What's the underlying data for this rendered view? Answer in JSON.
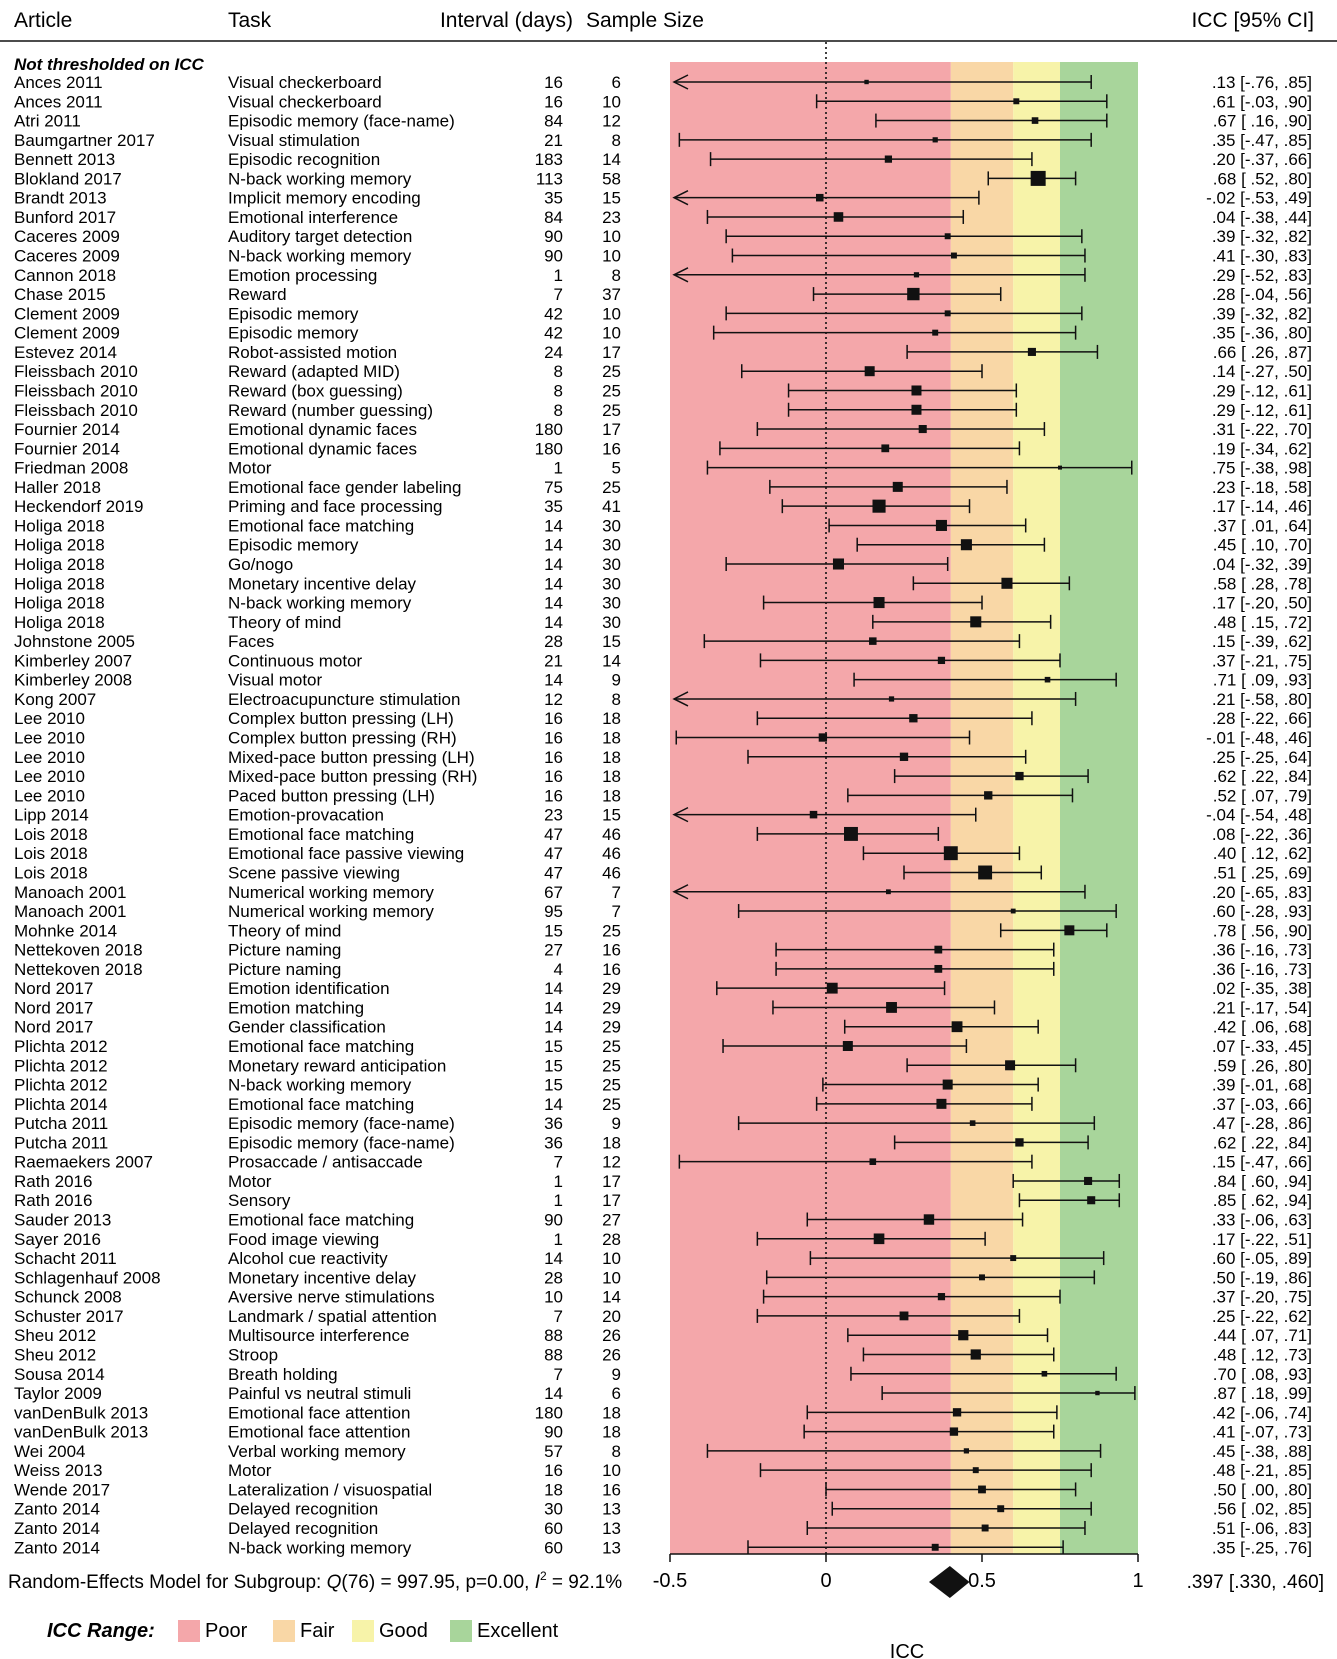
{
  "chart_data": {
    "type": "forest",
    "columns": [
      "Article",
      "Task",
      "Interval (days)",
      "Sample Size",
      "ICC [95% CI]"
    ],
    "subgroup_label": "Not thresholded on ICC",
    "xlabel": "ICC",
    "xlim": [
      -0.5,
      1.0
    ],
    "xticks": [
      {
        "value": -0.5,
        "label": "-0.5"
      },
      {
        "value": 0,
        "label": "0"
      },
      {
        "value": 0.5,
        "label": "0.5"
      },
      {
        "value": 1,
        "label": "1"
      }
    ],
    "reference_line": 0,
    "ranges": [
      {
        "label": "Poor",
        "from": -0.5,
        "to": 0.4,
        "color": "#f4a7aa"
      },
      {
        "label": "Fair",
        "from": 0.4,
        "to": 0.6,
        "color": "#f9d7a6"
      },
      {
        "label": "Good",
        "from": 0.6,
        "to": 0.75,
        "color": "#f7f3a9"
      },
      {
        "label": "Excellent",
        "from": 0.75,
        "to": 1.0,
        "color": "#a8d59b"
      }
    ],
    "legend_title": "ICC Range:",
    "studies": [
      {
        "article": "Ances 2011",
        "task": "Visual checkerboard",
        "interval": "16",
        "n": "6",
        "icc": 0.13,
        "lo": -0.76,
        "hi": 0.85,
        "ci_text": ".13 [-.76, .85]"
      },
      {
        "article": "Ances 2011",
        "task": "Visual checkerboard",
        "interval": "16",
        "n": "10",
        "icc": 0.61,
        "lo": -0.03,
        "hi": 0.9,
        "ci_text": ".61 [-.03, .90]"
      },
      {
        "article": "Atri 2011",
        "task": "Episodic memory (face-name)",
        "interval": "84",
        "n": "12",
        "icc": 0.67,
        "lo": 0.16,
        "hi": 0.9,
        "ci_text": ".67 [ .16, .90]"
      },
      {
        "article": "Baumgartner 2017",
        "task": "Visual stimulation",
        "interval": "21",
        "n": "8",
        "icc": 0.35,
        "lo": -0.47,
        "hi": 0.85,
        "ci_text": ".35 [-.47, .85]"
      },
      {
        "article": "Bennett 2013",
        "task": "Episodic recognition",
        "interval": "183",
        "n": "14",
        "icc": 0.2,
        "lo": -0.37,
        "hi": 0.66,
        "ci_text": ".20 [-.37, .66]"
      },
      {
        "article": "Blokland 2017",
        "task": "N-back working memory",
        "interval": "113",
        "n": "58",
        "icc": 0.68,
        "lo": 0.52,
        "hi": 0.8,
        "ci_text": ".68 [ .52, .80]"
      },
      {
        "article": "Brandt 2013",
        "task": "Implicit memory encoding",
        "interval": "35",
        "n": "15",
        "icc": -0.02,
        "lo": -0.53,
        "hi": 0.49,
        "ci_text": "-.02 [-.53, .49]"
      },
      {
        "article": "Bunford 2017",
        "task": "Emotional interference",
        "interval": "84",
        "n": "23",
        "icc": 0.04,
        "lo": -0.38,
        "hi": 0.44,
        "ci_text": ".04 [-.38, .44]"
      },
      {
        "article": "Caceres 2009",
        "task": "Auditory target detection",
        "interval": "90",
        "n": "10",
        "icc": 0.39,
        "lo": -0.32,
        "hi": 0.82,
        "ci_text": ".39 [-.32, .82]"
      },
      {
        "article": "Caceres 2009",
        "task": "N-back working memory",
        "interval": "90",
        "n": "10",
        "icc": 0.41,
        "lo": -0.3,
        "hi": 0.83,
        "ci_text": ".41 [-.30, .83]"
      },
      {
        "article": "Cannon 2018",
        "task": "Emotion processing",
        "interval": "1",
        "n": "8",
        "icc": 0.29,
        "lo": -0.52,
        "hi": 0.83,
        "ci_text": ".29 [-.52, .83]"
      },
      {
        "article": "Chase 2015",
        "task": "Reward",
        "interval": "7",
        "n": "37",
        "icc": 0.28,
        "lo": -0.04,
        "hi": 0.56,
        "ci_text": ".28 [-.04, .56]"
      },
      {
        "article": "Clement 2009",
        "task": "Episodic memory",
        "interval": "42",
        "n": "10",
        "icc": 0.39,
        "lo": -0.32,
        "hi": 0.82,
        "ci_text": ".39 [-.32, .82]"
      },
      {
        "article": "Clement 2009",
        "task": "Episodic memory",
        "interval": "42",
        "n": "10",
        "icc": 0.35,
        "lo": -0.36,
        "hi": 0.8,
        "ci_text": ".35 [-.36, .80]"
      },
      {
        "article": "Estevez 2014",
        "task": "Robot-assisted motion",
        "interval": "24",
        "n": "17",
        "icc": 0.66,
        "lo": 0.26,
        "hi": 0.87,
        "ci_text": ".66 [ .26, .87]"
      },
      {
        "article": "Fleissbach 2010",
        "task": "Reward (adapted MID)",
        "interval": "8",
        "n": "25",
        "icc": 0.14,
        "lo": -0.27,
        "hi": 0.5,
        "ci_text": ".14 [-.27, .50]"
      },
      {
        "article": "Fleissbach 2010",
        "task": "Reward (box guessing)",
        "interval": "8",
        "n": "25",
        "icc": 0.29,
        "lo": -0.12,
        "hi": 0.61,
        "ci_text": ".29 [-.12, .61]"
      },
      {
        "article": "Fleissbach 2010",
        "task": "Reward (number guessing)",
        "interval": "8",
        "n": "25",
        "icc": 0.29,
        "lo": -0.12,
        "hi": 0.61,
        "ci_text": ".29 [-.12, .61]"
      },
      {
        "article": "Fournier 2014",
        "task": "Emotional dynamic faces",
        "interval": "180",
        "n": "17",
        "icc": 0.31,
        "lo": -0.22,
        "hi": 0.7,
        "ci_text": ".31 [-.22, .70]"
      },
      {
        "article": "Fournier 2014",
        "task": "Emotional dynamic faces",
        "interval": "180",
        "n": "16",
        "icc": 0.19,
        "lo": -0.34,
        "hi": 0.62,
        "ci_text": ".19 [-.34, .62]"
      },
      {
        "article": "Friedman 2008",
        "task": "Motor",
        "interval": "1",
        "n": "5",
        "icc": 0.75,
        "lo": -0.38,
        "hi": 0.98,
        "ci_text": ".75 [-.38, .98]"
      },
      {
        "article": "Haller 2018",
        "task": "Emotional face gender labeling",
        "interval": "75",
        "n": "25",
        "icc": 0.23,
        "lo": -0.18,
        "hi": 0.58,
        "ci_text": ".23 [-.18, .58]"
      },
      {
        "article": "Heckendorf 2019",
        "task": "Priming and face processing",
        "interval": "35",
        "n": "41",
        "icc": 0.17,
        "lo": -0.14,
        "hi": 0.46,
        "ci_text": ".17 [-.14, .46]"
      },
      {
        "article": "Holiga 2018",
        "task": "Emotional face matching",
        "interval": "14",
        "n": "30",
        "icc": 0.37,
        "lo": 0.01,
        "hi": 0.64,
        "ci_text": ".37 [ .01, .64]"
      },
      {
        "article": "Holiga 2018",
        "task": "Episodic memory",
        "interval": "14",
        "n": "30",
        "icc": 0.45,
        "lo": 0.1,
        "hi": 0.7,
        "ci_text": ".45 [ .10, .70]"
      },
      {
        "article": "Holiga 2018",
        "task": "Go/nogo",
        "interval": "14",
        "n": "30",
        "icc": 0.04,
        "lo": -0.32,
        "hi": 0.39,
        "ci_text": ".04 [-.32, .39]"
      },
      {
        "article": "Holiga 2018",
        "task": "Monetary incentive delay",
        "interval": "14",
        "n": "30",
        "icc": 0.58,
        "lo": 0.28,
        "hi": 0.78,
        "ci_text": ".58 [ .28, .78]"
      },
      {
        "article": "Holiga 2018",
        "task": "N-back working memory",
        "interval": "14",
        "n": "30",
        "icc": 0.17,
        "lo": -0.2,
        "hi": 0.5,
        "ci_text": ".17 [-.20, .50]"
      },
      {
        "article": "Holiga 2018",
        "task": "Theory of mind",
        "interval": "14",
        "n": "30",
        "icc": 0.48,
        "lo": 0.15,
        "hi": 0.72,
        "ci_text": ".48 [ .15, .72]"
      },
      {
        "article": "Johnstone 2005",
        "task": "Faces",
        "interval": "28",
        "n": "15",
        "icc": 0.15,
        "lo": -0.39,
        "hi": 0.62,
        "ci_text": ".15 [-.39, .62]"
      },
      {
        "article": "Kimberley 2007",
        "task": "Continuous motor",
        "interval": "21",
        "n": "14",
        "icc": 0.37,
        "lo": -0.21,
        "hi": 0.75,
        "ci_text": ".37 [-.21, .75]"
      },
      {
        "article": "Kimberley 2008",
        "task": "Visual motor",
        "interval": "14",
        "n": "9",
        "icc": 0.71,
        "lo": 0.09,
        "hi": 0.93,
        "ci_text": ".71 [ .09, .93]"
      },
      {
        "article": "Kong 2007",
        "task": "Electroacupuncture stimulation",
        "interval": "12",
        "n": "8",
        "icc": 0.21,
        "lo": -0.58,
        "hi": 0.8,
        "ci_text": ".21 [-.58, .80]"
      },
      {
        "article": "Lee 2010",
        "task": "Complex button pressing (LH)",
        "interval": "16",
        "n": "18",
        "icc": 0.28,
        "lo": -0.22,
        "hi": 0.66,
        "ci_text": ".28 [-.22, .66]"
      },
      {
        "article": "Lee 2010",
        "task": "Complex button pressing (RH)",
        "interval": "16",
        "n": "18",
        "icc": -0.01,
        "lo": -0.48,
        "hi": 0.46,
        "ci_text": "-.01 [-.48, .46]"
      },
      {
        "article": "Lee 2010",
        "task": "Mixed-pace button pressing (LH)",
        "interval": "16",
        "n": "18",
        "icc": 0.25,
        "lo": -0.25,
        "hi": 0.64,
        "ci_text": ".25 [-.25, .64]"
      },
      {
        "article": "Lee 2010",
        "task": "Mixed-pace button pressing (RH)",
        "interval": "16",
        "n": "18",
        "icc": 0.62,
        "lo": 0.22,
        "hi": 0.84,
        "ci_text": ".62 [ .22, .84]"
      },
      {
        "article": "Lee 2010",
        "task": "Paced button pressing (LH)",
        "interval": "16",
        "n": "18",
        "icc": 0.52,
        "lo": 0.07,
        "hi": 0.79,
        "ci_text": ".52 [ .07, .79]"
      },
      {
        "article": "Lipp 2014",
        "task": "Emotion-provacation",
        "interval": "23",
        "n": "15",
        "icc": -0.04,
        "lo": -0.54,
        "hi": 0.48,
        "ci_text": "-.04 [-.54, .48]"
      },
      {
        "article": "Lois 2018",
        "task": "Emotional face matching",
        "interval": "47",
        "n": "46",
        "icc": 0.08,
        "lo": -0.22,
        "hi": 0.36,
        "ci_text": ".08 [-.22, .36]"
      },
      {
        "article": "Lois 2018",
        "task": "Emotional face passive viewing",
        "interval": "47",
        "n": "46",
        "icc": 0.4,
        "lo": 0.12,
        "hi": 0.62,
        "ci_text": ".40 [ .12, .62]"
      },
      {
        "article": "Lois 2018",
        "task": "Scene passive viewing",
        "interval": "47",
        "n": "46",
        "icc": 0.51,
        "lo": 0.25,
        "hi": 0.69,
        "ci_text": ".51 [ .25, .69]"
      },
      {
        "article": "Manoach 2001",
        "task": "Numerical working memory",
        "interval": "67",
        "n": "7",
        "icc": 0.2,
        "lo": -0.65,
        "hi": 0.83,
        "ci_text": ".20 [-.65, .83]"
      },
      {
        "article": "Manoach 2001",
        "task": "Numerical working memory",
        "interval": "95",
        "n": "7",
        "icc": 0.6,
        "lo": -0.28,
        "hi": 0.93,
        "ci_text": ".60 [-.28, .93]"
      },
      {
        "article": "Mohnke 2014",
        "task": "Theory of mind",
        "interval": "15",
        "n": "25",
        "icc": 0.78,
        "lo": 0.56,
        "hi": 0.9,
        "ci_text": ".78 [ .56, .90]"
      },
      {
        "article": "Nettekoven 2018",
        "task": "Picture naming",
        "interval": "27",
        "n": "16",
        "icc": 0.36,
        "lo": -0.16,
        "hi": 0.73,
        "ci_text": ".36 [-.16, .73]"
      },
      {
        "article": "Nettekoven 2018",
        "task": "Picture naming",
        "interval": "4",
        "n": "16",
        "icc": 0.36,
        "lo": -0.16,
        "hi": 0.73,
        "ci_text": ".36 [-.16, .73]"
      },
      {
        "article": "Nord 2017",
        "task": "Emotion identification",
        "interval": "14",
        "n": "29",
        "icc": 0.02,
        "lo": -0.35,
        "hi": 0.38,
        "ci_text": ".02 [-.35, .38]"
      },
      {
        "article": "Nord 2017",
        "task": "Emotion matching",
        "interval": "14",
        "n": "29",
        "icc": 0.21,
        "lo": -0.17,
        "hi": 0.54,
        "ci_text": ".21 [-.17, .54]"
      },
      {
        "article": "Nord 2017",
        "task": "Gender classification",
        "interval": "14",
        "n": "29",
        "icc": 0.42,
        "lo": 0.06,
        "hi": 0.68,
        "ci_text": ".42 [ .06, .68]"
      },
      {
        "article": "Plichta 2012",
        "task": "Emotional face matching",
        "interval": "15",
        "n": "25",
        "icc": 0.07,
        "lo": -0.33,
        "hi": 0.45,
        "ci_text": ".07 [-.33, .45]"
      },
      {
        "article": "Plichta 2012",
        "task": "Monetary reward anticipation",
        "interval": "15",
        "n": "25",
        "icc": 0.59,
        "lo": 0.26,
        "hi": 0.8,
        "ci_text": ".59 [ .26, .80]"
      },
      {
        "article": "Plichta 2012",
        "task": "N-back working memory",
        "interval": "15",
        "n": "25",
        "icc": 0.39,
        "lo": -0.01,
        "hi": 0.68,
        "ci_text": ".39 [-.01, .68]"
      },
      {
        "article": "Plichta 2014",
        "task": "Emotional face matching",
        "interval": "14",
        "n": "25",
        "icc": 0.37,
        "lo": -0.03,
        "hi": 0.66,
        "ci_text": ".37 [-.03, .66]"
      },
      {
        "article": "Putcha 2011",
        "task": "Episodic memory (face-name)",
        "interval": "36",
        "n": "9",
        "icc": 0.47,
        "lo": -0.28,
        "hi": 0.86,
        "ci_text": ".47 [-.28, .86]"
      },
      {
        "article": "Putcha 2011",
        "task": "Episodic memory (face-name)",
        "interval": "36",
        "n": "18",
        "icc": 0.62,
        "lo": 0.22,
        "hi": 0.84,
        "ci_text": ".62 [ .22, .84]"
      },
      {
        "article": "Raemaekers 2007",
        "task": "Prosaccade / antisaccade",
        "interval": "7",
        "n": "12",
        "icc": 0.15,
        "lo": -0.47,
        "hi": 0.66,
        "ci_text": ".15 [-.47, .66]"
      },
      {
        "article": "Rath 2016",
        "task": "Motor",
        "interval": "1",
        "n": "17",
        "icc": 0.84,
        "lo": 0.6,
        "hi": 0.94,
        "ci_text": ".84 [ .60, .94]"
      },
      {
        "article": "Rath 2016",
        "task": "Sensory",
        "interval": "1",
        "n": "17",
        "icc": 0.85,
        "lo": 0.62,
        "hi": 0.94,
        "ci_text": ".85 [ .62, .94]"
      },
      {
        "article": "Sauder 2013",
        "task": "Emotional face matching",
        "interval": "90",
        "n": "27",
        "icc": 0.33,
        "lo": -0.06,
        "hi": 0.63,
        "ci_text": ".33 [-.06, .63]"
      },
      {
        "article": "Sayer 2016",
        "task": "Food image viewing",
        "interval": "1",
        "n": "28",
        "icc": 0.17,
        "lo": -0.22,
        "hi": 0.51,
        "ci_text": ".17 [-.22, .51]"
      },
      {
        "article": "Schacht 2011",
        "task": "Alcohol cue reactivity",
        "interval": "14",
        "n": "10",
        "icc": 0.6,
        "lo": -0.05,
        "hi": 0.89,
        "ci_text": ".60 [-.05, .89]"
      },
      {
        "article": "Schlagenhauf 2008",
        "task": "Monetary incentive delay",
        "interval": "28",
        "n": "10",
        "icc": 0.5,
        "lo": -0.19,
        "hi": 0.86,
        "ci_text": ".50 [-.19, .86]"
      },
      {
        "article": "Schunck 2008",
        "task": "Aversive nerve stimulations",
        "interval": "10",
        "n": "14",
        "icc": 0.37,
        "lo": -0.2,
        "hi": 0.75,
        "ci_text": ".37 [-.20, .75]"
      },
      {
        "article": "Schuster 2017",
        "task": "Landmark / spatial attention",
        "interval": "7",
        "n": "20",
        "icc": 0.25,
        "lo": -0.22,
        "hi": 0.62,
        "ci_text": ".25 [-.22, .62]"
      },
      {
        "article": "Sheu 2012",
        "task": "Multisource interference",
        "interval": "88",
        "n": "26",
        "icc": 0.44,
        "lo": 0.07,
        "hi": 0.71,
        "ci_text": ".44 [ .07, .71]"
      },
      {
        "article": "Sheu 2012",
        "task": "Stroop",
        "interval": "88",
        "n": "26",
        "icc": 0.48,
        "lo": 0.12,
        "hi": 0.73,
        "ci_text": ".48 [ .12, .73]"
      },
      {
        "article": "Sousa 2014",
        "task": "Breath holding",
        "interval": "7",
        "n": "9",
        "icc": 0.7,
        "lo": 0.08,
        "hi": 0.93,
        "ci_text": ".70 [ .08, .93]"
      },
      {
        "article": "Taylor 2009",
        "task": "Painful vs neutral stimuli",
        "interval": "14",
        "n": "6",
        "icc": 0.87,
        "lo": 0.18,
        "hi": 0.99,
        "ci_text": ".87 [ .18, .99]"
      },
      {
        "article": "vanDenBulk 2013",
        "task": "Emotional face attention",
        "interval": "180",
        "n": "18",
        "icc": 0.42,
        "lo": -0.06,
        "hi": 0.74,
        "ci_text": ".42 [-.06, .74]"
      },
      {
        "article": "vanDenBulk 2013",
        "task": "Emotional face attention",
        "interval": "90",
        "n": "18",
        "icc": 0.41,
        "lo": -0.07,
        "hi": 0.73,
        "ci_text": ".41 [-.07, .73]"
      },
      {
        "article": "Wei 2004",
        "task": "Verbal working memory",
        "interval": "57",
        "n": "8",
        "icc": 0.45,
        "lo": -0.38,
        "hi": 0.88,
        "ci_text": ".45 [-.38, .88]"
      },
      {
        "article": "Weiss 2013",
        "task": "Motor",
        "interval": "16",
        "n": "10",
        "icc": 0.48,
        "lo": -0.21,
        "hi": 0.85,
        "ci_text": ".48 [-.21, .85]"
      },
      {
        "article": "Wende 2017",
        "task": "Lateralization / visuospatial",
        "interval": "18",
        "n": "16",
        "icc": 0.5,
        "lo": 0.0,
        "hi": 0.8,
        "ci_text": ".50 [ .00, .80]"
      },
      {
        "article": "Zanto 2014",
        "task": "Delayed recognition",
        "interval": "30",
        "n": "13",
        "icc": 0.56,
        "lo": 0.02,
        "hi": 0.85,
        "ci_text": ".56 [ .02, .85]"
      },
      {
        "article": "Zanto 2014",
        "task": "Delayed recognition",
        "interval": "60",
        "n": "13",
        "icc": 0.51,
        "lo": -0.06,
        "hi": 0.83,
        "ci_text": ".51 [-.06, .83]"
      },
      {
        "article": "Zanto 2014",
        "task": "N-back working memory",
        "interval": "60",
        "n": "13",
        "icc": 0.35,
        "lo": -0.25,
        "hi": 0.76,
        "ci_text": ".35 [-.25, .76]"
      }
    ],
    "summary": {
      "label": "Random-Effects Model for Subgroup: Q(76) = 997.95, p=0.00, I² = 92.1%",
      "label_parts": [
        "Random-Effects Model for Subgroup: ",
        "Q",
        "(76) = 997.95, p=0.00, ",
        "I",
        "2",
        " = 92.1%"
      ],
      "icc": 0.397,
      "lo": 0.33,
      "hi": 0.46,
      "ci_text": ".397 [.330, .460]"
    }
  }
}
